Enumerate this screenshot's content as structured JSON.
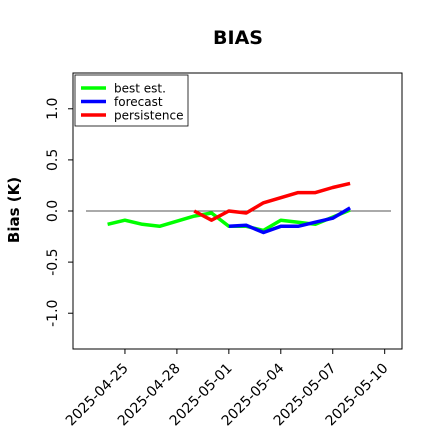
{
  "chart_data": {
    "type": "line",
    "title": "BIAS",
    "xlabel": "",
    "ylabel": "Bias (K)",
    "xlim": [
      "2025-04-22",
      "2025-05-11"
    ],
    "ylim": [
      -1.35,
      1.35
    ],
    "yticks": [
      -1.0,
      -0.5,
      0.0,
      0.5,
      1.0
    ],
    "ytick_labels": [
      "-1.0",
      "-0.5",
      "0.0",
      "0.5",
      "1.0"
    ],
    "xticks": [
      "2025-04-25",
      "2025-04-28",
      "2025-05-01",
      "2025-05-04",
      "2025-05-07",
      "2025-05-10"
    ],
    "xtick_labels": [
      "2025-04-25",
      "2025-04-28",
      "2025-05-01",
      "2025-05-04",
      "2025-05-07",
      "2025-05-10"
    ],
    "xtick_colors": [
      "#000000",
      "#000000",
      "#228b22",
      "#000000",
      "#000000",
      "#000000"
    ],
    "zero_line": true,
    "grid": false,
    "legend_position": "top-left",
    "series": [
      {
        "name": "best est.",
        "color": "#00ff00",
        "x": [
          "2025-04-24",
          "2025-04-25",
          "2025-04-26",
          "2025-04-27",
          "2025-04-28",
          "2025-04-29",
          "2025-04-30",
          "2025-05-01",
          "2025-05-02",
          "2025-05-03",
          "2025-05-04",
          "2025-05-05",
          "2025-05-06",
          "2025-05-07",
          "2025-05-08"
        ],
        "values": [
          -0.13,
          -0.09,
          -0.13,
          -0.15,
          -0.1,
          -0.05,
          -0.02,
          -0.15,
          -0.15,
          -0.19,
          -0.09,
          -0.11,
          -0.13,
          -0.06,
          0.01
        ]
      },
      {
        "name": "forecast",
        "color": "#0000ff",
        "x": [
          "2025-05-01",
          "2025-05-02",
          "2025-05-03",
          "2025-05-04",
          "2025-05-05",
          "2025-05-06",
          "2025-05-07",
          "2025-05-08"
        ],
        "values": [
          -0.15,
          -0.14,
          -0.21,
          -0.15,
          -0.15,
          -0.11,
          -0.07,
          0.03
        ]
      },
      {
        "name": "persistence",
        "color": "#ff0000",
        "x": [
          "2025-04-29",
          "2025-04-30",
          "2025-05-01",
          "2025-05-02",
          "2025-05-03",
          "2025-05-04",
          "2025-05-05",
          "2025-05-06",
          "2025-05-07",
          "2025-05-08"
        ],
        "values": [
          0.0,
          -0.09,
          0.0,
          -0.02,
          0.08,
          0.13,
          0.18,
          0.18,
          0.23,
          0.27
        ]
      }
    ]
  }
}
